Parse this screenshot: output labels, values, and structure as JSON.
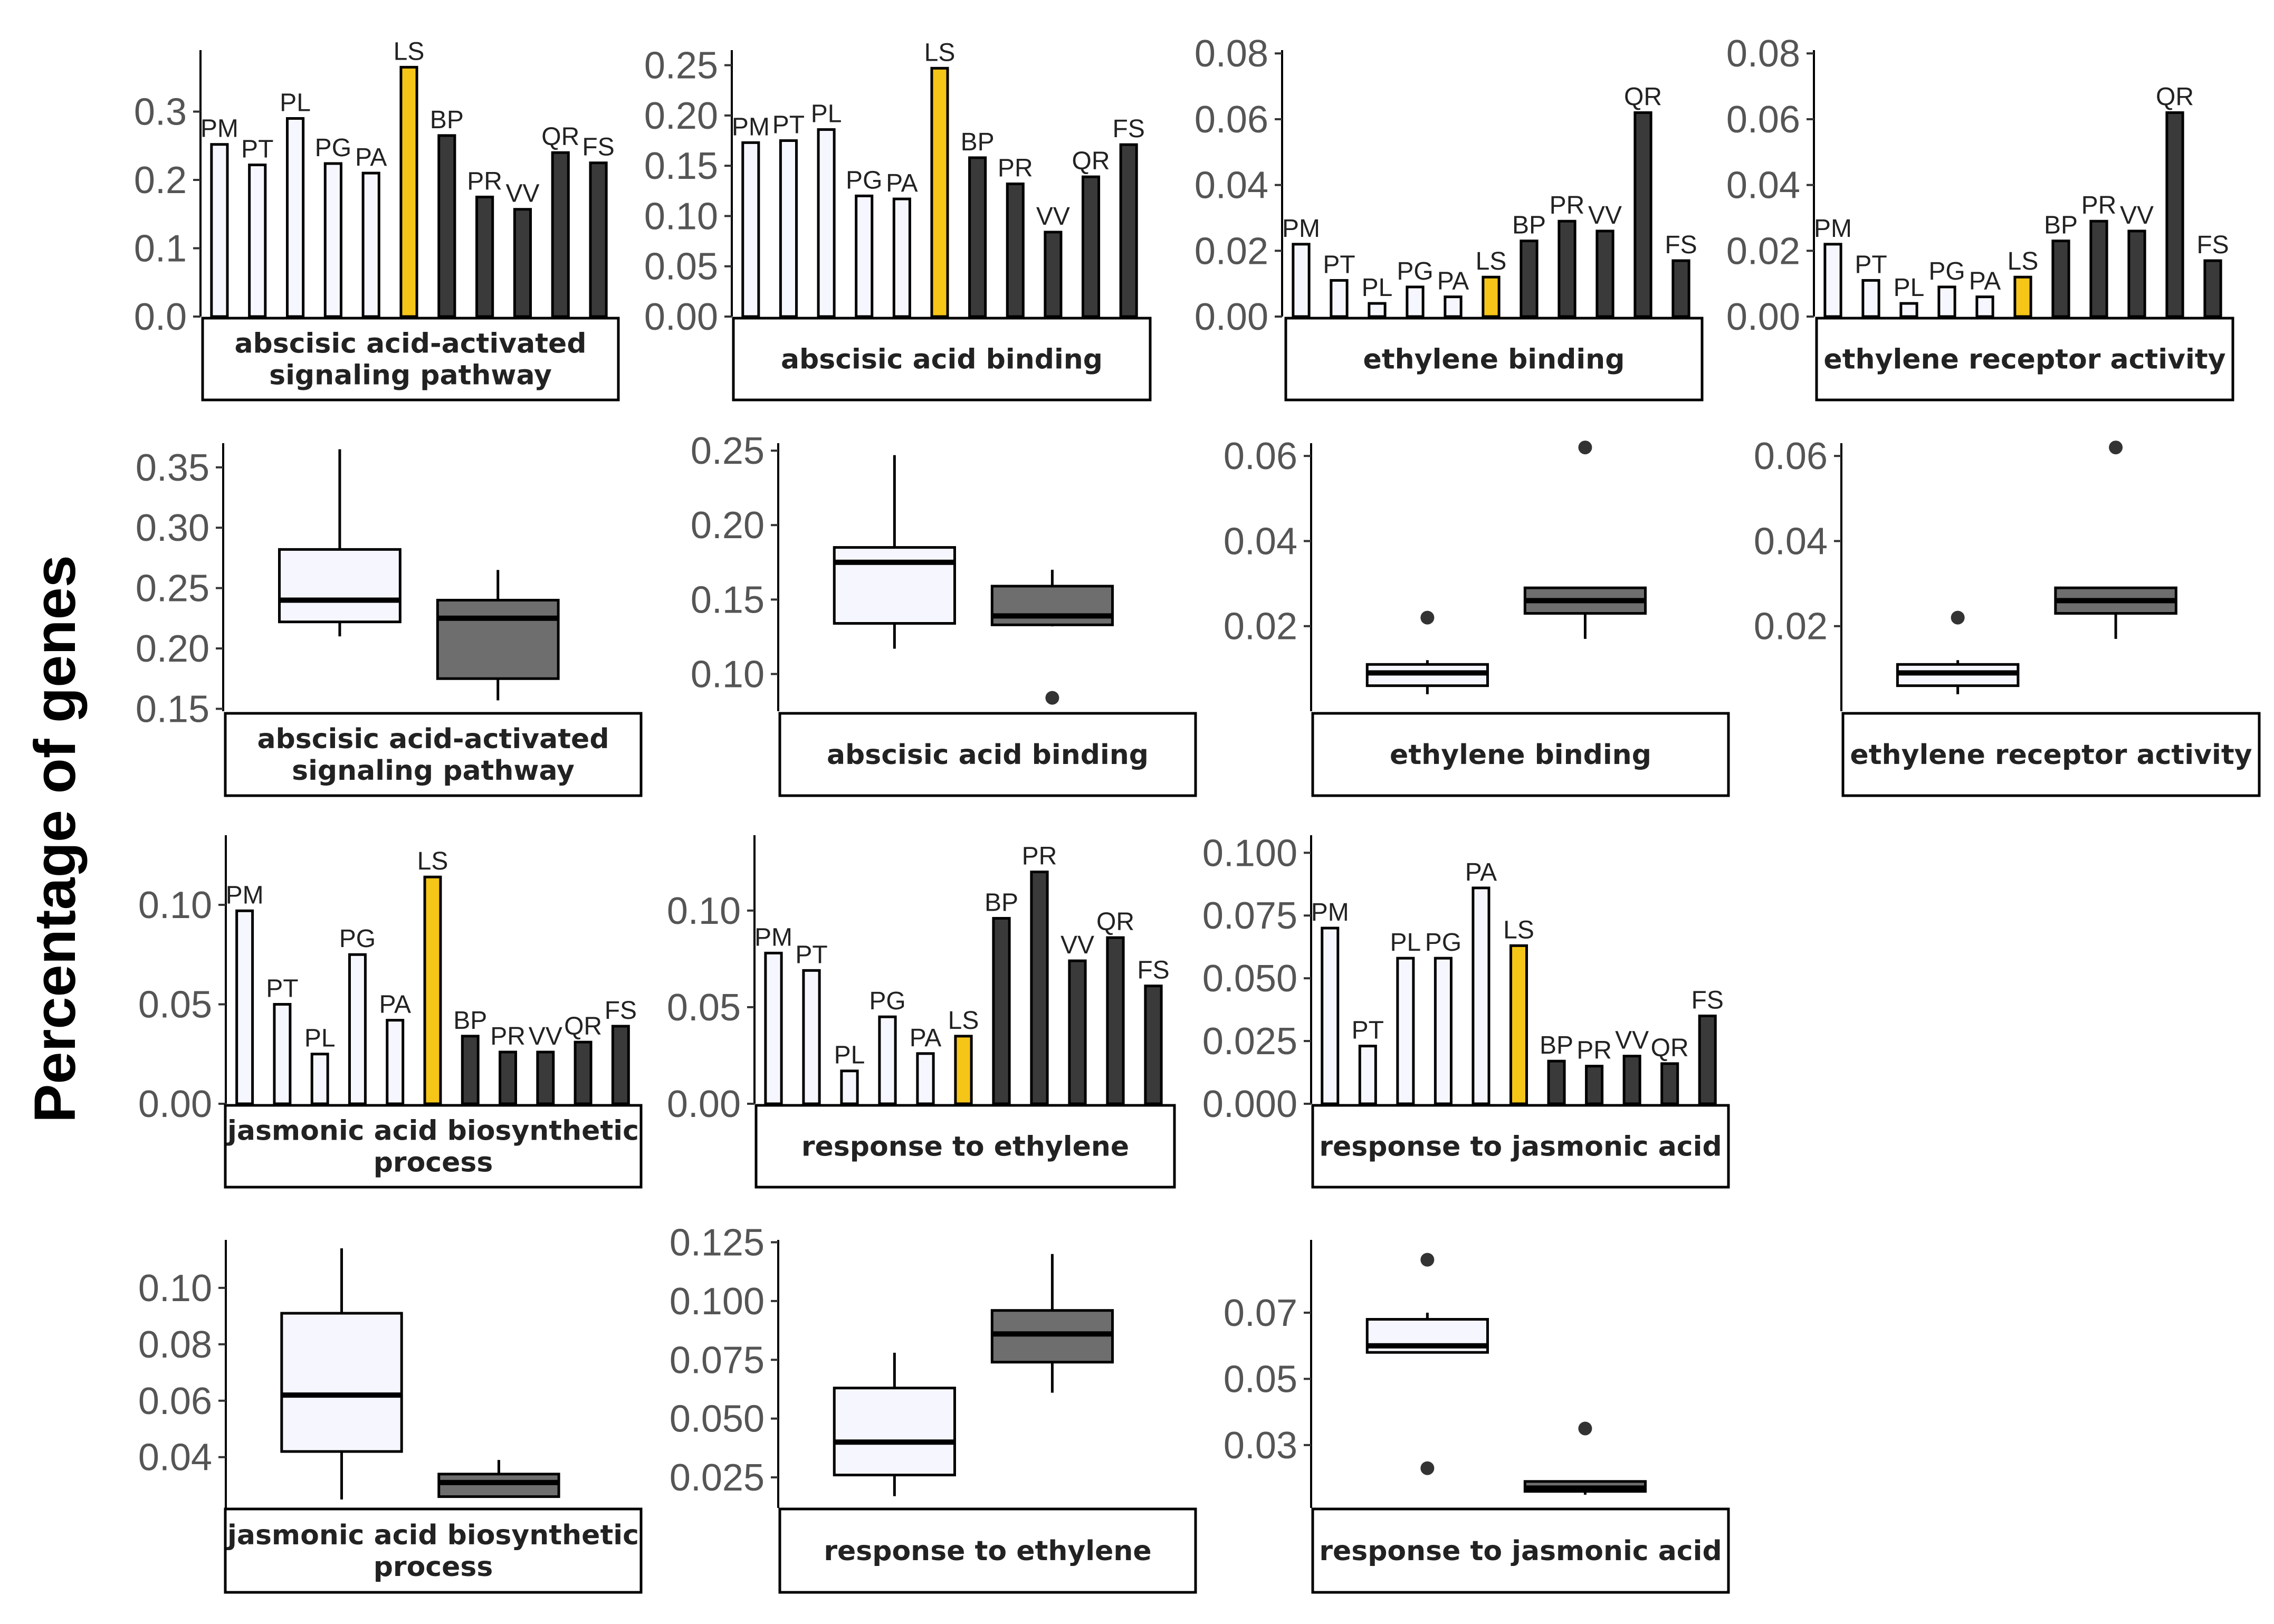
{
  "figure": {
    "ylabel": "Percentage of genes",
    "colors": {
      "light_fill": "#F6F7FE",
      "dark_fill": "#3A3A3A",
      "highlight_fill": "#F5C518",
      "box_light": "#F6F7FE",
      "box_dark": "#6E6E6E",
      "axis": "#000000"
    }
  },
  "chart_data": [
    {
      "type": "bar",
      "title": "abscisic acid-activated signaling pathway",
      "title_lines": [
        "abscisic acid-activated",
        "signaling pathway"
      ],
      "categories": [
        "PM",
        "PT",
        "PL",
        "PG",
        "PA",
        "LS",
        "BP",
        "PR",
        "VV",
        "QR",
        "FS"
      ],
      "groups": [
        "light",
        "light",
        "light",
        "light",
        "light",
        "highlight",
        "dark",
        "dark",
        "dark",
        "dark",
        "dark"
      ],
      "values": [
        0.252,
        0.222,
        0.29,
        0.224,
        0.21,
        0.365,
        0.265,
        0.175,
        0.157,
        0.24,
        0.225
      ],
      "ylim": [
        0,
        0.39
      ],
      "yticks": [
        0,
        0.1,
        0.2,
        0.3
      ],
      "ytick_labels": [
        "0.0",
        "0.1",
        "0.2",
        "0.3"
      ]
    },
    {
      "type": "bar",
      "title": "abscisic acid binding",
      "title_lines": [
        "abscisic acid binding"
      ],
      "categories": [
        "PM",
        "PT",
        "PL",
        "PG",
        "PA",
        "LS",
        "BP",
        "PR",
        "VV",
        "QR",
        "FS"
      ],
      "groups": [
        "light",
        "light",
        "light",
        "light",
        "light",
        "highlight",
        "dark",
        "dark",
        "dark",
        "dark",
        "dark"
      ],
      "values": [
        0.173,
        0.175,
        0.186,
        0.12,
        0.117,
        0.247,
        0.158,
        0.132,
        0.084,
        0.139,
        0.171
      ],
      "ylim": [
        0,
        0.265
      ],
      "yticks": [
        0,
        0.05,
        0.1,
        0.15,
        0.2,
        0.25
      ],
      "ytick_labels": [
        "0.00",
        "0.05",
        "0.10",
        "0.15",
        "0.20",
        "0.25"
      ]
    },
    {
      "type": "bar",
      "title": "ethylene binding",
      "title_lines": [
        "ethylene binding"
      ],
      "categories": [
        "PM",
        "PT",
        "PL",
        "PG",
        "PA",
        "LS",
        "BP",
        "PR",
        "VV",
        "QR",
        "FS"
      ],
      "groups": [
        "light",
        "light",
        "light",
        "light",
        "light",
        "highlight",
        "dark",
        "dark",
        "dark",
        "dark",
        "dark"
      ],
      "values": [
        0.022,
        0.011,
        0.004,
        0.009,
        0.006,
        0.012,
        0.023,
        0.029,
        0.026,
        0.062,
        0.017
      ],
      "ylim": [
        0,
        0.081
      ],
      "yticks": [
        0,
        0.02,
        0.04,
        0.06,
        0.08
      ],
      "ytick_labels": [
        "0.00",
        "0.02",
        "0.04",
        "0.06",
        "0.08"
      ]
    },
    {
      "type": "bar",
      "title": "ethylene receptor activity",
      "title_lines": [
        "ethylene receptor activity"
      ],
      "categories": [
        "PM",
        "PT",
        "PL",
        "PG",
        "PA",
        "LS",
        "BP",
        "PR",
        "VV",
        "QR",
        "FS"
      ],
      "groups": [
        "light",
        "light",
        "light",
        "light",
        "light",
        "highlight",
        "dark",
        "dark",
        "dark",
        "dark",
        "dark"
      ],
      "values": [
        0.022,
        0.011,
        0.004,
        0.009,
        0.006,
        0.012,
        0.023,
        0.029,
        0.026,
        0.062,
        0.017
      ],
      "ylim": [
        0,
        0.081
      ],
      "yticks": [
        0,
        0.02,
        0.04,
        0.06,
        0.08
      ],
      "ytick_labels": [
        "0.00",
        "0.02",
        "0.04",
        "0.06",
        "0.08"
      ]
    },
    {
      "type": "box",
      "title": "abscisic acid-activated signaling pathway",
      "title_lines": [
        "abscisic acid-activated",
        "signaling pathway"
      ],
      "ylim": [
        0.148,
        0.37
      ],
      "yticks": [
        0.15,
        0.2,
        0.25,
        0.3,
        0.35
      ],
      "ytick_labels": [
        "0.15",
        "0.20",
        "0.25",
        "0.30",
        "0.35"
      ],
      "boxes": [
        {
          "group": "light",
          "low": 0.21,
          "q1": 0.222,
          "median": 0.24,
          "q3": 0.282,
          "high": 0.365,
          "outliers": []
        },
        {
          "group": "dark",
          "low": 0.157,
          "q1": 0.175,
          "median": 0.225,
          "q3": 0.24,
          "high": 0.265,
          "outliers": []
        }
      ]
    },
    {
      "type": "box",
      "title": "abscisic acid binding",
      "title_lines": [
        "abscisic acid binding"
      ],
      "ylim": [
        0.075,
        0.255
      ],
      "yticks": [
        0.1,
        0.15,
        0.2,
        0.25
      ],
      "ytick_labels": [
        "0.10",
        "0.15",
        "0.20",
        "0.25"
      ],
      "boxes": [
        {
          "group": "light",
          "low": 0.117,
          "q1": 0.134,
          "median": 0.175,
          "q3": 0.185,
          "high": 0.247,
          "outliers": []
        },
        {
          "group": "dark",
          "low": 0.132,
          "q1": 0.133,
          "median": 0.139,
          "q3": 0.159,
          "high": 0.17,
          "outliers": [
            0.084
          ]
        }
      ]
    },
    {
      "type": "box",
      "title": "ethylene binding",
      "title_lines": [
        "ethylene binding"
      ],
      "ylim": [
        0.0,
        0.063
      ],
      "yticks": [
        0.02,
        0.04,
        0.06
      ],
      "ytick_labels": [
        "0.02",
        "0.04",
        "0.06"
      ],
      "boxes": [
        {
          "group": "light",
          "low": 0.004,
          "q1": 0.006,
          "median": 0.009,
          "q3": 0.011,
          "high": 0.012,
          "outliers": [
            0.022
          ]
        },
        {
          "group": "dark",
          "low": 0.017,
          "q1": 0.023,
          "median": 0.026,
          "q3": 0.029,
          "high": 0.029,
          "outliers": [
            0.062
          ]
        }
      ]
    },
    {
      "type": "box",
      "title": "ethylene receptor activity",
      "title_lines": [
        "ethylene receptor activity"
      ],
      "ylim": [
        0.0,
        0.063
      ],
      "yticks": [
        0.02,
        0.04,
        0.06
      ],
      "ytick_labels": [
        "0.02",
        "0.04",
        "0.06"
      ],
      "boxes": [
        {
          "group": "light",
          "low": 0.004,
          "q1": 0.006,
          "median": 0.009,
          "q3": 0.011,
          "high": 0.012,
          "outliers": [
            0.022
          ]
        },
        {
          "group": "dark",
          "low": 0.017,
          "q1": 0.023,
          "median": 0.026,
          "q3": 0.029,
          "high": 0.029,
          "outliers": [
            0.062
          ]
        }
      ]
    },
    {
      "type": "bar",
      "title": "jasmonic acid biosynthetic process",
      "title_lines": [
        "jasmonic acid biosynthetic",
        "process"
      ],
      "categories": [
        "PM",
        "PT",
        "PL",
        "PG",
        "PA",
        "LS",
        "BP",
        "PR",
        "VV",
        "QR",
        "FS"
      ],
      "groups": [
        "light",
        "light",
        "light",
        "light",
        "light",
        "highlight",
        "dark",
        "dark",
        "dark",
        "dark",
        "dark"
      ],
      "values": [
        0.097,
        0.05,
        0.025,
        0.075,
        0.042,
        0.114,
        0.034,
        0.026,
        0.026,
        0.031,
        0.039
      ],
      "ylim": [
        0,
        0.135
      ],
      "yticks": [
        0,
        0.05,
        0.1
      ],
      "ytick_labels": [
        "0.00",
        "0.05",
        "0.10"
      ]
    },
    {
      "type": "bar",
      "title": "response to ethylene",
      "title_lines": [
        "response to ethylene"
      ],
      "categories": [
        "PM",
        "PT",
        "PL",
        "PG",
        "PA",
        "LS",
        "BP",
        "PR",
        "VV",
        "QR",
        "FS"
      ],
      "groups": [
        "light",
        "light",
        "light",
        "light",
        "light",
        "highlight",
        "dark",
        "dark",
        "dark",
        "dark",
        "dark"
      ],
      "values": [
        0.078,
        0.069,
        0.017,
        0.045,
        0.026,
        0.035,
        0.096,
        0.12,
        0.074,
        0.086,
        0.061
      ],
      "ylim": [
        0,
        0.139
      ],
      "yticks": [
        0,
        0.05,
        0.1
      ],
      "ytick_labels": [
        "0.00",
        "0.05",
        "0.10"
      ]
    },
    {
      "type": "bar",
      "title": "response to jasmonic acid",
      "title_lines": [
        "response to jasmonic acid"
      ],
      "categories": [
        "PM",
        "PT",
        "PL",
        "PG",
        "PA",
        "LS",
        "BP",
        "PR",
        "VV",
        "QR",
        "FS"
      ],
      "groups": [
        "light",
        "light",
        "light",
        "light",
        "light",
        "highlight",
        "dark",
        "dark",
        "dark",
        "dark",
        "dark"
      ],
      "values": [
        0.07,
        0.023,
        0.058,
        0.058,
        0.086,
        0.063,
        0.017,
        0.015,
        0.019,
        0.016,
        0.035
      ],
      "ylim": [
        0,
        0.107
      ],
      "yticks": [
        0,
        0.025,
        0.05,
        0.075,
        0.1
      ],
      "ytick_labels": [
        "0.000",
        "0.025",
        "0.050",
        "0.075",
        "0.100"
      ]
    },
    {
      "type": "box",
      "title": "jasmonic acid biosynthetic process",
      "title_lines": [
        "jasmonic acid biosynthetic",
        "process"
      ],
      "ylim": [
        0.022,
        0.117
      ],
      "yticks": [
        0.04,
        0.06,
        0.08,
        0.1
      ],
      "ytick_labels": [
        "0.04",
        "0.06",
        "0.08",
        "0.10"
      ],
      "boxes": [
        {
          "group": "light",
          "low": 0.025,
          "q1": 0.042,
          "median": 0.062,
          "q3": 0.091,
          "high": 0.114,
          "outliers": []
        },
        {
          "group": "dark",
          "low": 0.026,
          "q1": 0.026,
          "median": 0.031,
          "q3": 0.034,
          "high": 0.039,
          "outliers": []
        }
      ]
    },
    {
      "type": "box",
      "title": "response to ethylene",
      "title_lines": [
        "response to ethylene"
      ],
      "ylim": [
        0.012,
        0.126
      ],
      "yticks": [
        0.025,
        0.05,
        0.075,
        0.1,
        0.125
      ],
      "ytick_labels": [
        "0.025",
        "0.050",
        "0.075",
        "0.100",
        "0.125"
      ],
      "boxes": [
        {
          "group": "light",
          "low": 0.017,
          "q1": 0.026,
          "median": 0.04,
          "q3": 0.063,
          "high": 0.078,
          "outliers": []
        },
        {
          "group": "dark",
          "low": 0.061,
          "q1": 0.074,
          "median": 0.086,
          "q3": 0.096,
          "high": 0.12,
          "outliers": []
        }
      ]
    },
    {
      "type": "box",
      "title": "response to jasmonic acid",
      "title_lines": [
        "response to jasmonic acid"
      ],
      "ylim": [
        0.011,
        0.092
      ],
      "yticks": [
        0.03,
        0.05,
        0.07
      ],
      "ytick_labels": [
        "0.03",
        "0.05",
        "0.07"
      ],
      "boxes": [
        {
          "group": "light",
          "low": 0.058,
          "q1": 0.058,
          "median": 0.06,
          "q3": 0.068,
          "high": 0.07,
          "outliers": [
            0.086,
            0.023
          ]
        },
        {
          "group": "dark",
          "low": 0.015,
          "q1": 0.016,
          "median": 0.017,
          "q3": 0.019,
          "high": 0.019,
          "outliers": [
            0.035
          ]
        }
      ]
    }
  ]
}
